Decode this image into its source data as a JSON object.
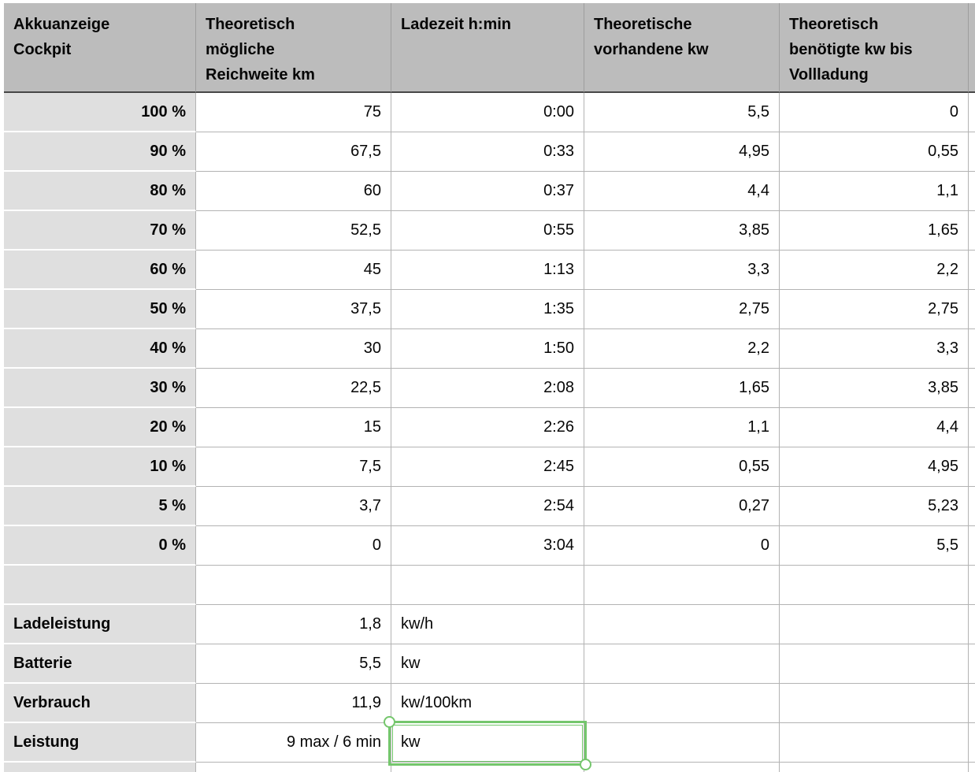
{
  "app": {
    "selection_color": "#74c66c"
  },
  "table": {
    "headers": [
      "Akkuanzeige\nCockpit",
      "Theoretisch\nmögliche\nReichweite km",
      "Ladezeit h:min",
      "Theoretische\nvorhandene kw",
      "Theoretisch\nbenötigte kw bis\nVollladung"
    ],
    "battery_rows": [
      {
        "akku": "100 %",
        "reichweite": "75",
        "ladezeit": "0:00",
        "vorhanden": "5,5",
        "benoetigt": "0"
      },
      {
        "akku": "90 %",
        "reichweite": "67,5",
        "ladezeit": "0:33",
        "vorhanden": "4,95",
        "benoetigt": "0,55"
      },
      {
        "akku": "80 %",
        "reichweite": "60",
        "ladezeit": "0:37",
        "vorhanden": "4,4",
        "benoetigt": "1,1"
      },
      {
        "akku": "70 %",
        "reichweite": "52,5",
        "ladezeit": "0:55",
        "vorhanden": "3,85",
        "benoetigt": "1,65"
      },
      {
        "akku": "60 %",
        "reichweite": "45",
        "ladezeit": "1:13",
        "vorhanden": "3,3",
        "benoetigt": "2,2"
      },
      {
        "akku": "50 %",
        "reichweite": "37,5",
        "ladezeit": "1:35",
        "vorhanden": "2,75",
        "benoetigt": "2,75"
      },
      {
        "akku": "40 %",
        "reichweite": "30",
        "ladezeit": "1:50",
        "vorhanden": "2,2",
        "benoetigt": "3,3"
      },
      {
        "akku": "30 %",
        "reichweite": "22,5",
        "ladezeit": "2:08",
        "vorhanden": "1,65",
        "benoetigt": "3,85"
      },
      {
        "akku": "20 %",
        "reichweite": "15",
        "ladezeit": "2:26",
        "vorhanden": "1,1",
        "benoetigt": "4,4"
      },
      {
        "akku": "10 %",
        "reichweite": "7,5",
        "ladezeit": "2:45",
        "vorhanden": "0,55",
        "benoetigt": "4,95"
      },
      {
        "akku": "5 %",
        "reichweite": "3,7",
        "ladezeit": "2:54",
        "vorhanden": "0,27",
        "benoetigt": "5,23"
      },
      {
        "akku": "0 %",
        "reichweite": "0",
        "ladezeit": "3:04",
        "vorhanden": "0",
        "benoetigt": "5,5"
      }
    ],
    "info_rows": [
      {
        "label": "Ladeleistung",
        "value": "1,8",
        "unit": "kw/h",
        "selected": false
      },
      {
        "label": "Batterie",
        "value": "5,5",
        "unit": "kw",
        "selected": false
      },
      {
        "label": "Verbrauch",
        "value": "11,9",
        "unit": "kw/100km",
        "selected": false
      },
      {
        "label": "Leistung",
        "value": "9 max / 6 min",
        "unit": "kw",
        "selected": true
      }
    ]
  }
}
